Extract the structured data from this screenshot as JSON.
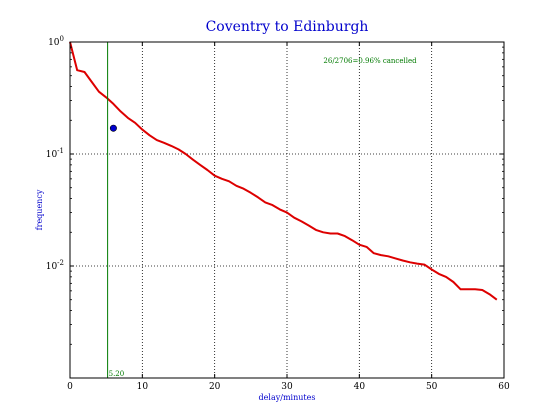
{
  "chart_data": {
    "type": "line",
    "title": "Coventry to Edinburgh",
    "xlabel": "delay/minutes",
    "ylabel": "frequency",
    "xlim": [
      0,
      60
    ],
    "ylim": [
      0.001,
      1
    ],
    "yscale": "log",
    "grid": true,
    "x_ticks": [
      "0",
      "10",
      "20",
      "30",
      "40",
      "50",
      "60"
    ],
    "x_tick_values": [
      0,
      10,
      20,
      30,
      40,
      50,
      60
    ],
    "y_ticks": [
      {
        "base": "10",
        "exp": "0",
        "value": 1
      },
      {
        "base": "10",
        "exp": "-1",
        "value": 0.1
      },
      {
        "base": "10",
        "exp": "-2",
        "value": 0.01
      }
    ],
    "annotation": "26/2706=0.96% cancelled",
    "vline": {
      "x": 5.2,
      "label": "5.20",
      "color": "#007a00"
    },
    "marker_point": {
      "x": 6,
      "y": 0.17,
      "color": "#0000cc"
    },
    "series": [
      {
        "color": "#dd0000",
        "x": [
          0,
          1,
          2,
          3,
          4,
          5,
          6,
          7,
          8,
          9,
          10,
          11,
          12,
          13,
          14,
          15,
          16,
          17,
          18,
          19,
          20,
          21,
          22,
          23,
          24,
          25,
          26,
          27,
          28,
          29,
          30,
          31,
          32,
          33,
          34,
          35,
          36,
          37,
          38,
          39,
          40,
          41,
          42,
          43,
          44,
          45,
          46,
          47,
          48,
          49,
          50,
          51,
          52,
          53,
          54,
          55,
          56,
          57,
          58,
          59
        ],
        "y": [
          1.0,
          0.56,
          0.54,
          0.44,
          0.36,
          0.32,
          0.28,
          0.24,
          0.21,
          0.19,
          0.165,
          0.147,
          0.133,
          0.126,
          0.118,
          0.11,
          0.1,
          0.089,
          0.08,
          0.072,
          0.064,
          0.06,
          0.057,
          0.052,
          0.049,
          0.045,
          0.041,
          0.037,
          0.035,
          0.032,
          0.03,
          0.027,
          0.025,
          0.023,
          0.021,
          0.02,
          0.0195,
          0.0195,
          0.0185,
          0.017,
          0.0155,
          0.0148,
          0.013,
          0.0125,
          0.0122,
          0.0117,
          0.0112,
          0.0108,
          0.0105,
          0.0103,
          0.0093,
          0.0085,
          0.008,
          0.0072,
          0.0062,
          0.0062,
          0.0062,
          0.0061,
          0.0056,
          0.005
        ]
      }
    ]
  }
}
